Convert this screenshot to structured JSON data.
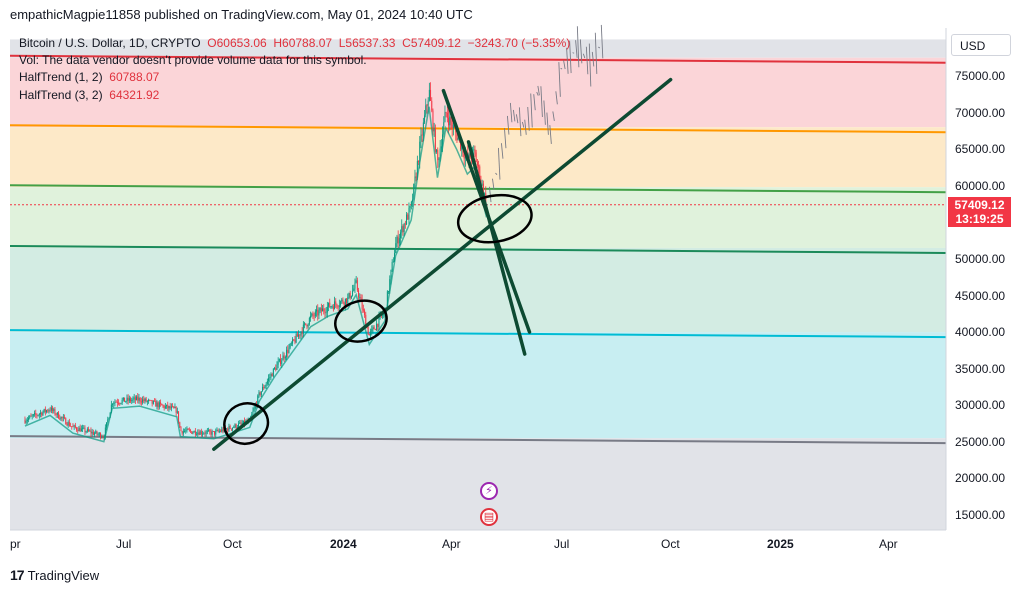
{
  "publish_line": "empathicMagpie11858 published on TradingView.com, May 01, 2024 10:40 UTC",
  "legend": {
    "symbol": "Bitcoin / U.S. Dollar, 1D, CRYPTO",
    "open": "O60653.06",
    "high": "H60788.07",
    "low": "L56537.33",
    "close": "C57409.12",
    "change": "−3243.70 (−5.35%)",
    "vol_note": "Vol: The data vendor doesn't provide volume data for this symbol.",
    "halftrend1_label": "HalfTrend (1, 2)",
    "halftrend1_value": "60788.07",
    "halftrend2_label": "HalfTrend (3, 2)",
    "halftrend2_value": "64321.92"
  },
  "currency": "USD",
  "price_badge": {
    "price": "57409.12",
    "countdown": "13:19:25"
  },
  "footer_logo": "TradingView",
  "colors": {
    "up": "#089981",
    "down": "#f23645",
    "trend_line": "#0d4a32"
  },
  "chart_data": {
    "type": "candlestick",
    "title": "Bitcoin / U.S. Dollar, 1D, CRYPTO",
    "y_ticks": [
      "75000.00",
      "70000.00",
      "65000.00",
      "60000.00",
      "55000.00",
      "50000.00",
      "45000.00",
      "40000.00",
      "35000.00",
      "30000.00",
      "25000.00",
      "20000.00",
      "15000.00"
    ],
    "x_ticks": [
      "pr",
      "Jul",
      "Oct",
      "2024",
      "Apr",
      "Jul",
      "Oct",
      "2025",
      "Apr"
    ],
    "ylim": [
      12500,
      80000
    ],
    "last_price": 57409.12,
    "price_path": [
      [
        "2023-04-10",
        28000
      ],
      [
        "2023-05-01",
        29500
      ],
      [
        "2023-05-20",
        27000
      ],
      [
        "2023-06-15",
        25800
      ],
      [
        "2023-06-22",
        30500
      ],
      [
        "2023-07-15",
        30800
      ],
      [
        "2023-08-15",
        29300
      ],
      [
        "2023-08-18",
        26500
      ],
      [
        "2023-09-15",
        26200
      ],
      [
        "2023-10-15",
        27800
      ],
      [
        "2023-10-23",
        31500
      ],
      [
        "2023-11-05",
        35000
      ],
      [
        "2023-12-05",
        42000
      ],
      [
        "2023-12-20",
        43500
      ],
      [
        "2024-01-05",
        44500
      ],
      [
        "2024-01-12",
        46500
      ],
      [
        "2024-01-23",
        39500
      ],
      [
        "2024-02-05",
        42800
      ],
      [
        "2024-02-14",
        52000
      ],
      [
        "2024-02-27",
        57000
      ],
      [
        "2024-03-05",
        65000
      ],
      [
        "2024-03-13",
        73000
      ],
      [
        "2024-03-20",
        63000
      ],
      [
        "2024-03-27",
        70000
      ],
      [
        "2024-04-05",
        67000
      ],
      [
        "2024-04-14",
        63500
      ],
      [
        "2024-04-20",
        64500
      ],
      [
        "2024-04-30",
        57409
      ]
    ],
    "projection_path": [
      [
        "2024-04-30",
        57409
      ],
      [
        "2024-05-10",
        63000
      ],
      [
        "2024-05-20",
        70000
      ],
      [
        "2024-06-01",
        68000
      ],
      [
        "2024-06-12",
        73000
      ],
      [
        "2024-06-22",
        67000
      ],
      [
        "2024-07-01",
        76000
      ],
      [
        "2024-07-15",
        79000
      ],
      [
        "2024-07-25",
        76500
      ],
      [
        "2024-08-05",
        80000
      ]
    ],
    "levels": [
      {
        "price": 77500,
        "color": "#e0323d"
      },
      {
        "price": 68000,
        "color": "#ff9800"
      },
      {
        "price": 59800,
        "color": "#43a047"
      },
      {
        "price": 51500,
        "color": "#1b8a5a"
      },
      {
        "price": 40000,
        "color": "#00bcd4"
      },
      {
        "price": 25500,
        "color": "#787b86"
      }
    ],
    "trend_lines": [
      {
        "from": [
          "2023-09-15",
          24000
        ],
        "to": [
          "2024-10-01",
          74500
        ]
      },
      {
        "from": [
          "2024-03-25",
          73000
        ],
        "to": [
          "2024-06-05",
          40000
        ]
      },
      {
        "from": [
          "2024-04-15",
          66000
        ],
        "to": [
          "2024-06-01",
          37000
        ]
      }
    ]
  }
}
